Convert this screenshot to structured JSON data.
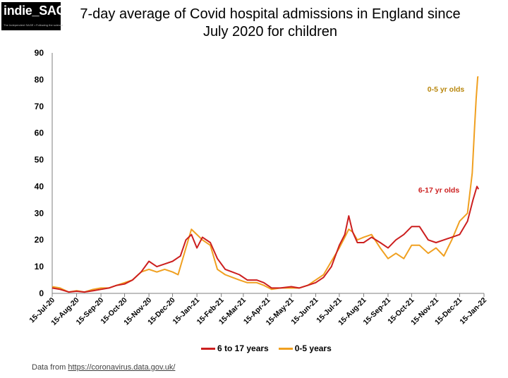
{
  "logo": {
    "text": "indie_SAGE",
    "tagline": "The Independent SAGE • Following the science"
  },
  "title_line1": "7-day average of Covid hospital admissions in England since",
  "title_line2": "July 2020 for children",
  "source": {
    "prefix": "Data from ",
    "link": "https://coronavirus.data.gov.uk/"
  },
  "colors": {
    "red": "#cc1f1f",
    "orange": "#f0a020",
    "gold_label": "#b8860b"
  },
  "chart_data": {
    "type": "line",
    "title": "7-day average of Covid hospital admissions in England since July 2020 for children",
    "ylim": [
      0,
      90
    ],
    "yticks": [
      0,
      10,
      20,
      30,
      40,
      50,
      60,
      70,
      80,
      90
    ],
    "xlim": [
      "2020-07-15",
      "2022-01-15"
    ],
    "xticks": [
      "15-Jul-20",
      "15-Aug-20",
      "15-Sep-20",
      "15-Oct-20",
      "15-Nov-20",
      "15-Dec-20",
      "15-Jan-21",
      "15-Feb-21",
      "15-Mar-21",
      "15-Apr-21",
      "15-May-21",
      "15-Jun-21",
      "15-Jul-21",
      "15-Aug-21",
      "15-Sep-21",
      "15-Oct-21",
      "15-Nov-21",
      "15-Dec-21",
      "15-Jan-22"
    ],
    "legend_position": "bottom",
    "grid": false,
    "annotations": [
      {
        "text": "0-5  yr olds",
        "series": "0-5 years"
      },
      {
        "text": "6-17 yr olds",
        "series": "6 to 17 years"
      }
    ],
    "series": [
      {
        "name": "6 to 17 years",
        "color": "#cc1f1f",
        "points": [
          [
            "2020-07-15",
            2
          ],
          [
            "2020-07-25",
            1.5
          ],
          [
            "2020-08-05",
            0.5
          ],
          [
            "2020-08-15",
            0.8
          ],
          [
            "2020-08-25",
            0.5
          ],
          [
            "2020-09-05",
            1
          ],
          [
            "2020-09-15",
            1.5
          ],
          [
            "2020-09-25",
            2
          ],
          [
            "2020-10-05",
            3
          ],
          [
            "2020-10-15",
            3.5
          ],
          [
            "2020-10-25",
            5
          ],
          [
            "2020-11-05",
            8
          ],
          [
            "2020-11-15",
            12
          ],
          [
            "2020-11-25",
            10
          ],
          [
            "2020-12-05",
            11
          ],
          [
            "2020-12-15",
            12
          ],
          [
            "2020-12-25",
            14
          ],
          [
            "2021-01-01",
            20
          ],
          [
            "2021-01-08",
            22
          ],
          [
            "2021-01-15",
            17
          ],
          [
            "2021-01-22",
            21
          ],
          [
            "2021-02-01",
            19
          ],
          [
            "2021-02-10",
            13
          ],
          [
            "2021-02-20",
            9
          ],
          [
            "2021-03-01",
            8
          ],
          [
            "2021-03-10",
            7
          ],
          [
            "2021-03-20",
            5
          ],
          [
            "2021-04-01",
            5
          ],
          [
            "2021-04-10",
            4
          ],
          [
            "2021-04-20",
            2
          ],
          [
            "2021-05-01",
            2
          ],
          [
            "2021-05-15",
            2.5
          ],
          [
            "2021-05-25",
            2
          ],
          [
            "2021-06-05",
            3
          ],
          [
            "2021-06-15",
            4
          ],
          [
            "2021-06-25",
            6
          ],
          [
            "2021-07-05",
            10
          ],
          [
            "2021-07-15",
            18
          ],
          [
            "2021-07-22",
            22
          ],
          [
            "2021-07-27",
            29
          ],
          [
            "2021-08-01",
            23
          ],
          [
            "2021-08-07",
            19
          ],
          [
            "2021-08-15",
            19
          ],
          [
            "2021-08-25",
            21
          ],
          [
            "2021-09-05",
            19
          ],
          [
            "2021-09-15",
            17
          ],
          [
            "2021-09-25",
            20
          ],
          [
            "2021-10-05",
            22
          ],
          [
            "2021-10-15",
            25
          ],
          [
            "2021-10-25",
            25
          ],
          [
            "2021-11-05",
            20
          ],
          [
            "2021-11-15",
            19
          ],
          [
            "2021-11-25",
            20
          ],
          [
            "2021-12-05",
            21
          ],
          [
            "2021-12-15",
            22
          ],
          [
            "2021-12-25",
            27
          ],
          [
            "2022-01-01",
            35
          ],
          [
            "2022-01-06",
            40
          ],
          [
            "2022-01-08",
            39
          ]
        ]
      },
      {
        "name": "0-5 years",
        "color": "#f0a020",
        "points": [
          [
            "2020-07-15",
            2.5
          ],
          [
            "2020-07-25",
            2
          ],
          [
            "2020-08-05",
            0.5
          ],
          [
            "2020-08-15",
            1
          ],
          [
            "2020-08-25",
            0.5
          ],
          [
            "2020-09-05",
            1.5
          ],
          [
            "2020-09-15",
            2
          ],
          [
            "2020-09-25",
            2
          ],
          [
            "2020-10-05",
            3
          ],
          [
            "2020-10-15",
            4
          ],
          [
            "2020-10-25",
            5
          ],
          [
            "2020-11-05",
            8
          ],
          [
            "2020-11-15",
            9
          ],
          [
            "2020-11-25",
            8
          ],
          [
            "2020-12-05",
            9
          ],
          [
            "2020-12-15",
            8
          ],
          [
            "2020-12-22",
            7
          ],
          [
            "2021-01-01",
            17
          ],
          [
            "2021-01-08",
            24
          ],
          [
            "2021-01-15",
            22
          ],
          [
            "2021-01-22",
            20
          ],
          [
            "2021-02-01",
            18
          ],
          [
            "2021-02-10",
            9
          ],
          [
            "2021-02-20",
            7
          ],
          [
            "2021-03-01",
            6
          ],
          [
            "2021-03-10",
            5
          ],
          [
            "2021-03-20",
            4
          ],
          [
            "2021-04-01",
            4
          ],
          [
            "2021-04-10",
            3
          ],
          [
            "2021-04-20",
            1.5
          ],
          [
            "2021-05-01",
            2
          ],
          [
            "2021-05-15",
            2
          ],
          [
            "2021-05-25",
            2
          ],
          [
            "2021-06-05",
            3
          ],
          [
            "2021-06-15",
            5
          ],
          [
            "2021-06-25",
            7
          ],
          [
            "2021-07-05",
            12
          ],
          [
            "2021-07-15",
            17
          ],
          [
            "2021-07-22",
            21
          ],
          [
            "2021-07-27",
            24
          ],
          [
            "2021-08-01",
            23
          ],
          [
            "2021-08-07",
            20
          ],
          [
            "2021-08-15",
            21
          ],
          [
            "2021-08-25",
            22
          ],
          [
            "2021-09-05",
            17
          ],
          [
            "2021-09-15",
            13
          ],
          [
            "2021-09-25",
            15
          ],
          [
            "2021-10-05",
            13
          ],
          [
            "2021-10-15",
            18
          ],
          [
            "2021-10-25",
            18
          ],
          [
            "2021-11-05",
            15
          ],
          [
            "2021-11-15",
            17
          ],
          [
            "2021-11-25",
            14
          ],
          [
            "2021-12-05",
            20
          ],
          [
            "2021-12-15",
            27
          ],
          [
            "2021-12-25",
            30
          ],
          [
            "2021-12-31",
            45
          ],
          [
            "2022-01-03",
            62
          ],
          [
            "2022-01-05",
            73
          ],
          [
            "2022-01-07",
            81
          ],
          [
            "2022-01-08",
            81
          ]
        ]
      }
    ]
  }
}
